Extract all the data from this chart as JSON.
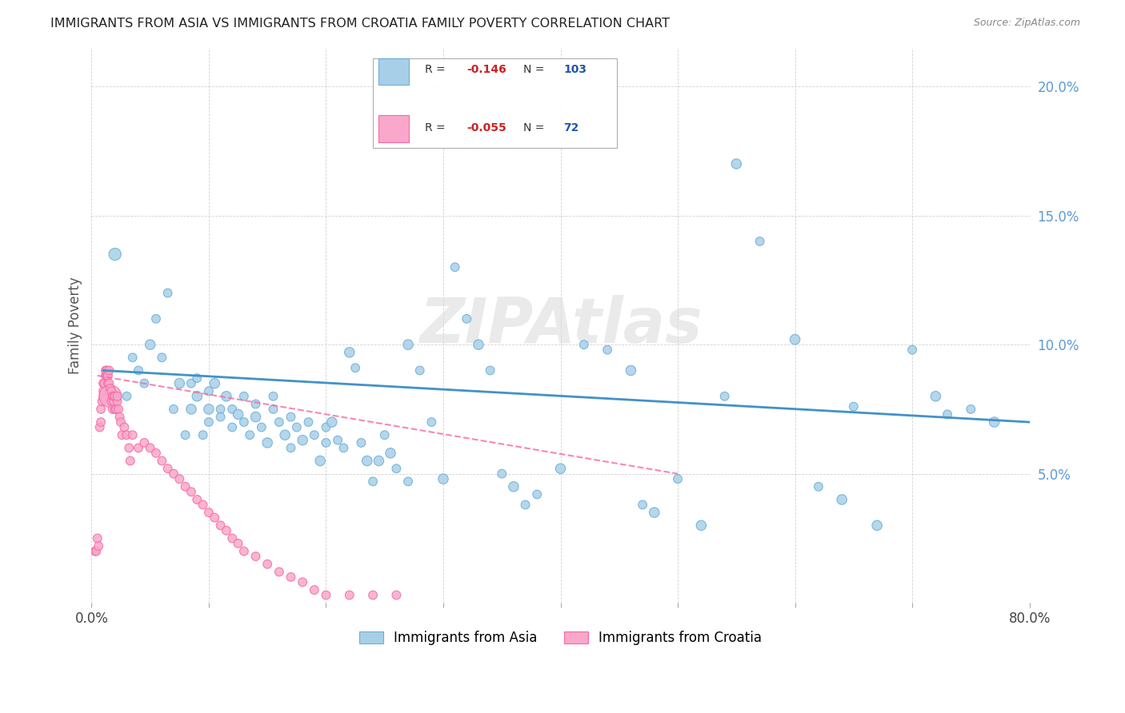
{
  "title": "IMMIGRANTS FROM ASIA VS IMMIGRANTS FROM CROATIA FAMILY POVERTY CORRELATION CHART",
  "source": "Source: ZipAtlas.com",
  "ylabel": "Family Poverty",
  "y_ticks": [
    0.0,
    0.05,
    0.1,
    0.15,
    0.2
  ],
  "y_tick_labels": [
    "",
    "5.0%",
    "10.0%",
    "15.0%",
    "20.0%"
  ],
  "x_range": [
    0.0,
    0.8
  ],
  "y_range": [
    0.0,
    0.215
  ],
  "watermark": "ZIPAtlas",
  "legend_asia_R": "-0.146",
  "legend_asia_N": "103",
  "legend_croatia_R": "-0.055",
  "legend_croatia_N": "72",
  "asia_color": "#a8cfe8",
  "croatia_color": "#f9a8cb",
  "asia_edge_color": "#6baed6",
  "croatia_edge_color": "#f768a1",
  "asia_line_color": "#4292c6",
  "croatia_line_color": "#f768a1",
  "asia_scatter_x": [
    0.02,
    0.03,
    0.035,
    0.04,
    0.045,
    0.05,
    0.055,
    0.06,
    0.065,
    0.07,
    0.075,
    0.08,
    0.085,
    0.085,
    0.09,
    0.09,
    0.095,
    0.1,
    0.1,
    0.1,
    0.105,
    0.11,
    0.11,
    0.115,
    0.12,
    0.12,
    0.125,
    0.13,
    0.13,
    0.135,
    0.14,
    0.14,
    0.145,
    0.15,
    0.155,
    0.155,
    0.16,
    0.165,
    0.17,
    0.17,
    0.175,
    0.18,
    0.185,
    0.19,
    0.195,
    0.2,
    0.2,
    0.205,
    0.21,
    0.215,
    0.22,
    0.225,
    0.23,
    0.235,
    0.24,
    0.245,
    0.25,
    0.255,
    0.26,
    0.27,
    0.27,
    0.28,
    0.29,
    0.3,
    0.31,
    0.32,
    0.33,
    0.34,
    0.35,
    0.36,
    0.37,
    0.38,
    0.4,
    0.42,
    0.44,
    0.46,
    0.47,
    0.48,
    0.5,
    0.52,
    0.54,
    0.55,
    0.57,
    0.6,
    0.62,
    0.64,
    0.65,
    0.67,
    0.7,
    0.72,
    0.73,
    0.75,
    0.77
  ],
  "asia_scatter_y": [
    0.135,
    0.08,
    0.095,
    0.09,
    0.085,
    0.1,
    0.11,
    0.095,
    0.12,
    0.075,
    0.085,
    0.065,
    0.075,
    0.085,
    0.08,
    0.087,
    0.065,
    0.075,
    0.082,
    0.07,
    0.085,
    0.075,
    0.072,
    0.08,
    0.068,
    0.075,
    0.073,
    0.08,
    0.07,
    0.065,
    0.072,
    0.077,
    0.068,
    0.062,
    0.075,
    0.08,
    0.07,
    0.065,
    0.06,
    0.072,
    0.068,
    0.063,
    0.07,
    0.065,
    0.055,
    0.062,
    0.068,
    0.07,
    0.063,
    0.06,
    0.097,
    0.091,
    0.062,
    0.055,
    0.047,
    0.055,
    0.065,
    0.058,
    0.052,
    0.1,
    0.047,
    0.09,
    0.07,
    0.048,
    0.13,
    0.11,
    0.1,
    0.09,
    0.05,
    0.045,
    0.038,
    0.042,
    0.052,
    0.1,
    0.098,
    0.09,
    0.038,
    0.035,
    0.048,
    0.03,
    0.08,
    0.17,
    0.14,
    0.102,
    0.045,
    0.04,
    0.076,
    0.03,
    0.098,
    0.08,
    0.073,
    0.075,
    0.07
  ],
  "asia_scatter_sizes": [
    120,
    60,
    60,
    60,
    60,
    80,
    60,
    60,
    60,
    60,
    80,
    60,
    80,
    60,
    80,
    60,
    60,
    80,
    60,
    60,
    80,
    60,
    60,
    80,
    60,
    60,
    80,
    60,
    60,
    60,
    80,
    60,
    60,
    80,
    60,
    60,
    60,
    80,
    60,
    60,
    60,
    80,
    60,
    60,
    80,
    60,
    60,
    80,
    60,
    60,
    80,
    60,
    60,
    80,
    60,
    80,
    60,
    80,
    60,
    80,
    60,
    60,
    60,
    80,
    60,
    60,
    80,
    60,
    60,
    80,
    60,
    60,
    80,
    60,
    60,
    80,
    60,
    80,
    60,
    80,
    60,
    80,
    60,
    80,
    60,
    80,
    60,
    80,
    60,
    80,
    60,
    60,
    80
  ],
  "croatia_scatter_x": [
    0.003,
    0.004,
    0.005,
    0.006,
    0.007,
    0.008,
    0.008,
    0.009,
    0.01,
    0.01,
    0.01,
    0.011,
    0.012,
    0.012,
    0.013,
    0.013,
    0.014,
    0.014,
    0.015,
    0.015,
    0.015,
    0.016,
    0.016,
    0.017,
    0.017,
    0.018,
    0.018,
    0.019,
    0.019,
    0.02,
    0.02,
    0.021,
    0.022,
    0.022,
    0.023,
    0.024,
    0.025,
    0.026,
    0.028,
    0.03,
    0.032,
    0.033,
    0.035,
    0.04,
    0.045,
    0.05,
    0.055,
    0.06,
    0.065,
    0.07,
    0.075,
    0.08,
    0.085,
    0.09,
    0.095,
    0.1,
    0.105,
    0.11,
    0.115,
    0.12,
    0.125,
    0.13,
    0.14,
    0.15,
    0.16,
    0.17,
    0.18,
    0.19,
    0.2,
    0.22,
    0.24,
    0.26
  ],
  "croatia_scatter_y": [
    0.02,
    0.02,
    0.025,
    0.022,
    0.068,
    0.07,
    0.075,
    0.078,
    0.08,
    0.082,
    0.085,
    0.085,
    0.088,
    0.09,
    0.088,
    0.09,
    0.085,
    0.088,
    0.082,
    0.085,
    0.09,
    0.08,
    0.083,
    0.078,
    0.082,
    0.075,
    0.08,
    0.078,
    0.08,
    0.075,
    0.08,
    0.075,
    0.078,
    0.08,
    0.075,
    0.072,
    0.07,
    0.065,
    0.068,
    0.065,
    0.06,
    0.055,
    0.065,
    0.06,
    0.062,
    0.06,
    0.058,
    0.055,
    0.052,
    0.05,
    0.048,
    0.045,
    0.043,
    0.04,
    0.038,
    0.035,
    0.033,
    0.03,
    0.028,
    0.025,
    0.023,
    0.02,
    0.018,
    0.015,
    0.012,
    0.01,
    0.008,
    0.005,
    0.003,
    0.003,
    0.003,
    0.003
  ],
  "croatia_scatter_sizes": [
    60,
    60,
    60,
    60,
    60,
    60,
    60,
    60,
    60,
    60,
    60,
    60,
    60,
    60,
    60,
    60,
    60,
    60,
    60,
    60,
    60,
    400,
    60,
    60,
    60,
    60,
    60,
    60,
    60,
    60,
    60,
    60,
    60,
    60,
    60,
    60,
    60,
    60,
    60,
    60,
    60,
    60,
    60,
    60,
    60,
    60,
    60,
    60,
    60,
    60,
    60,
    60,
    60,
    60,
    60,
    60,
    60,
    60,
    60,
    60,
    60,
    60,
    60,
    60,
    60,
    60,
    60,
    60,
    60,
    60,
    60,
    60
  ],
  "asia_trendline_x": [
    0.01,
    0.8
  ],
  "asia_trendline_y": [
    0.09,
    0.07
  ],
  "croatia_trendline_x": [
    0.005,
    0.5
  ],
  "croatia_trendline_y": [
    0.088,
    0.05
  ]
}
